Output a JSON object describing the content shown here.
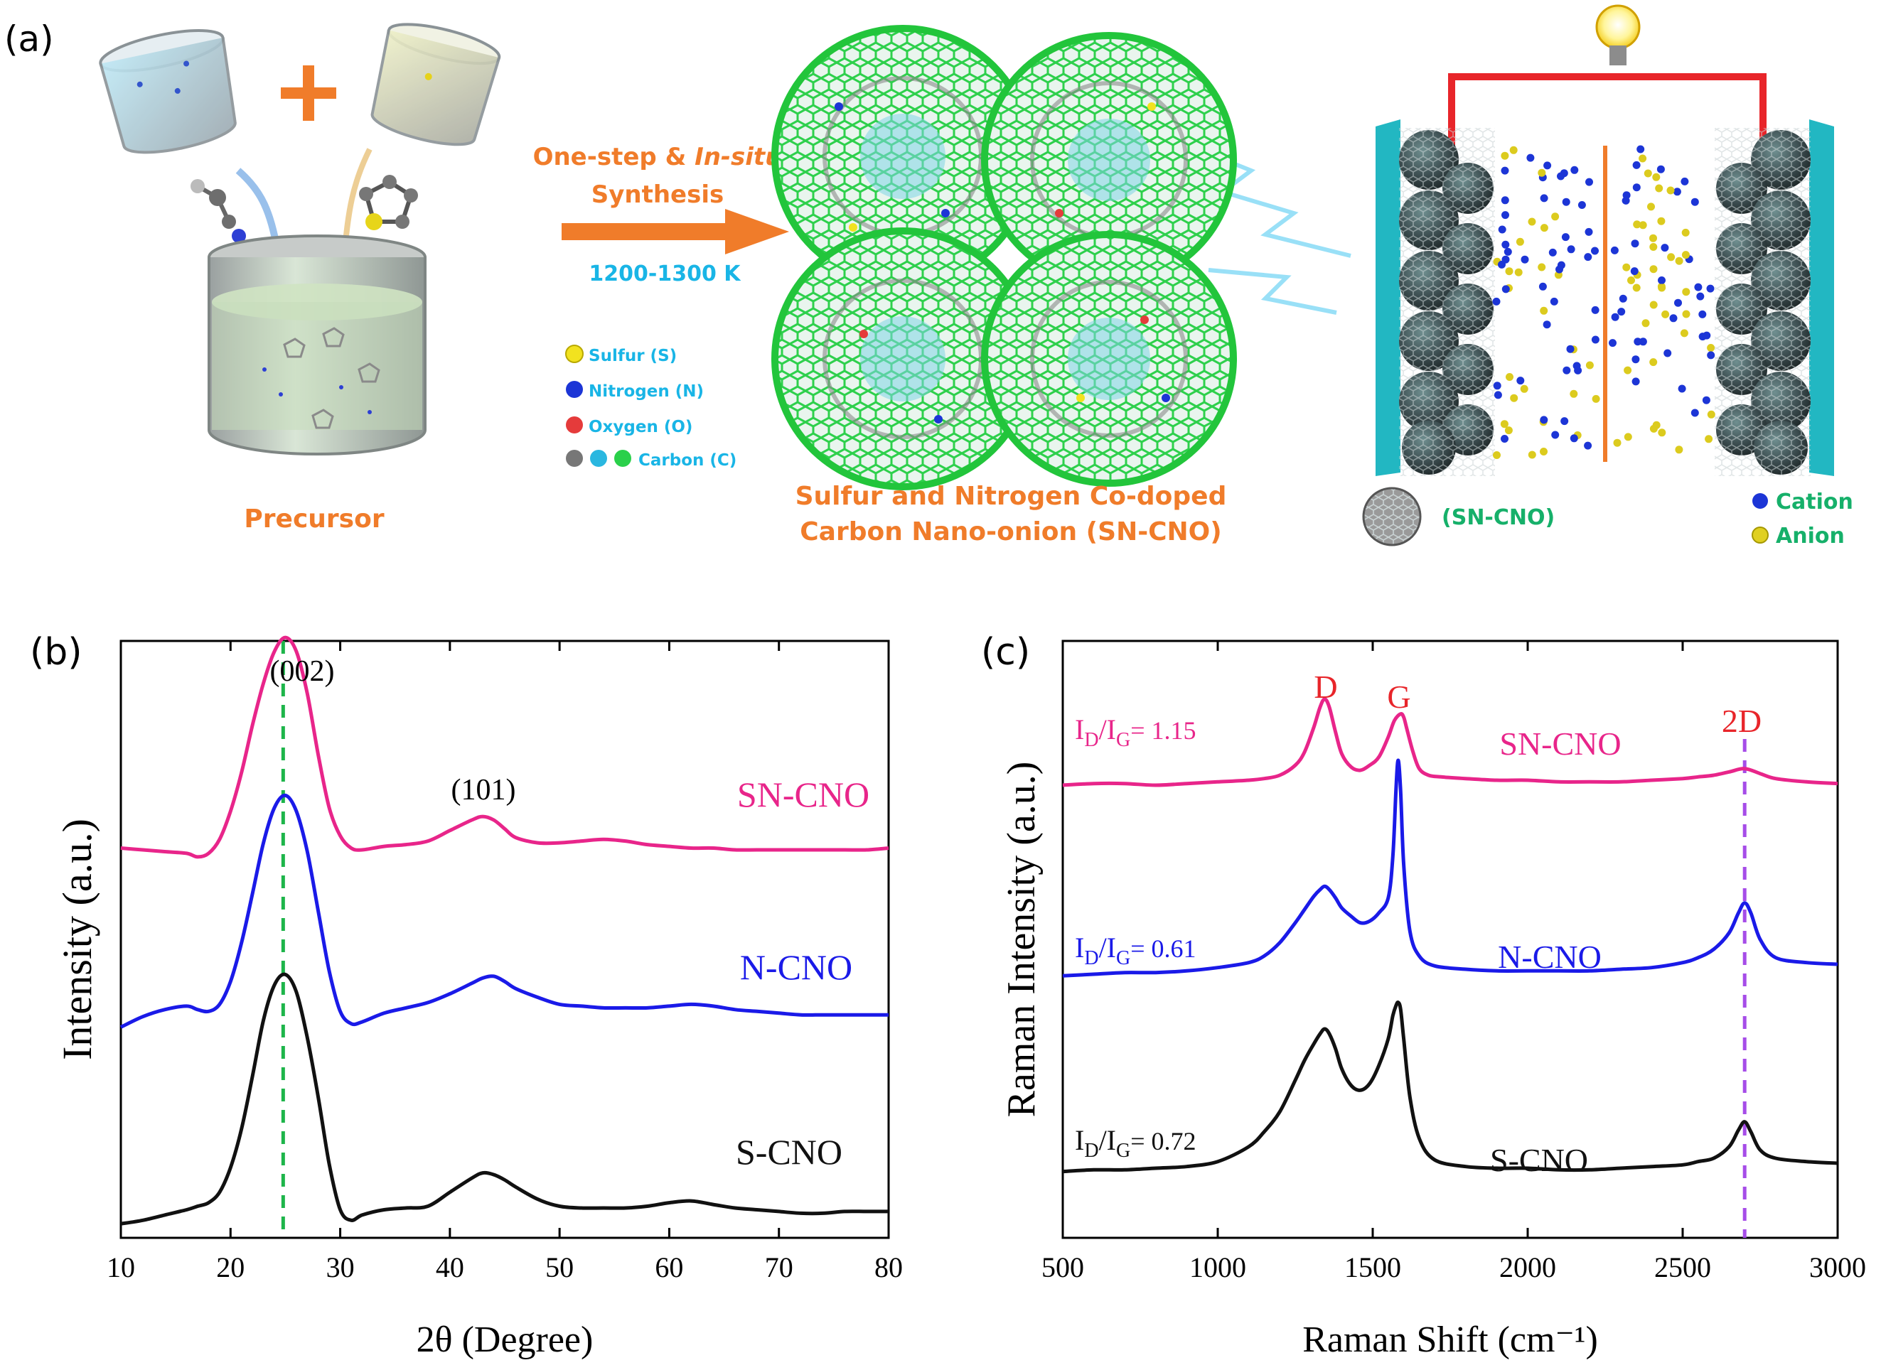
{
  "panel_a": {
    "label": "(a)",
    "precursor_label": "Precursor",
    "arrow_line1_plain": "One-step & ",
    "arrow_line1_italic": "In-situ",
    "arrow_line2": "Synthesis",
    "temperature": "1200-1300 K",
    "legend": {
      "sulfur": "Sulfur (S)",
      "nitrogen": "Nitrogen (N)",
      "oxygen": "Oxygen (O)",
      "carbon": "Carbon (C)"
    },
    "product_line1": "Sulfur and Nitrogen Co-doped",
    "product_line2": "Carbon Nano-onion (SN-CNO)",
    "device_legend": {
      "sncno": "(SN-CNO)",
      "cation": "Cation",
      "anion": "Anion"
    },
    "colors": {
      "orange": "#f07c2a",
      "cyan": "#19b5e6",
      "green": "#1dbf3a",
      "device_cyan": "#22b7c2",
      "wire_red": "#e8252a",
      "legend_green": "#16b06a"
    }
  },
  "panel_b": {
    "label": "(b)",
    "peak_labels": [
      "(002)",
      "(101)"
    ],
    "ref_line_color": "#1db54a"
  },
  "panel_c": {
    "label": "(c)",
    "peak_labels": [
      "D",
      "G",
      "2D"
    ],
    "ratios": [
      {
        "prefix": "I",
        "sub1": "D",
        "mid": "/I",
        "sub2": "G",
        "value": "= 1.15",
        "color": "#e8258a"
      },
      {
        "prefix": "I",
        "sub1": "D",
        "mid": "/I",
        "sub2": "G",
        "value": "= 0.61",
        "color": "#1a1ae8"
      },
      {
        "prefix": "I",
        "sub1": "D",
        "mid": "/I",
        "sub2": "G",
        "value": "= 0.72",
        "color": "#111111"
      }
    ],
    "ref_line_color": "#a64de8"
  },
  "chart_data": [
    {
      "type": "line",
      "title": "",
      "xlabel": "2θ (Degree)",
      "ylabel": "Intensity (a.u.)",
      "xlim": [
        10,
        80
      ],
      "ylim": [
        0,
        3.4
      ],
      "xticks": [
        10,
        20,
        30,
        40,
        50,
        60,
        70,
        80
      ],
      "ref_line_x": 24.8,
      "series": [
        {
          "name": "SN-CNO",
          "color": "#e8258a",
          "x": [
            10,
            12,
            14,
            16,
            17,
            18,
            19,
            20,
            21,
            22,
            23,
            24,
            25,
            26,
            27,
            28,
            29,
            30,
            31,
            32,
            34,
            36,
            38,
            40,
            42,
            43,
            44,
            45,
            46,
            48,
            50,
            52,
            54,
            56,
            58,
            60,
            62,
            64,
            66,
            68,
            70,
            72,
            74,
            76,
            78,
            80
          ],
          "y": [
            2.22,
            2.21,
            2.2,
            2.19,
            2.17,
            2.19,
            2.27,
            2.43,
            2.65,
            2.92,
            3.16,
            3.34,
            3.42,
            3.34,
            3.1,
            2.75,
            2.45,
            2.29,
            2.22,
            2.21,
            2.23,
            2.24,
            2.26,
            2.32,
            2.38,
            2.4,
            2.38,
            2.33,
            2.28,
            2.25,
            2.25,
            2.26,
            2.27,
            2.26,
            2.24,
            2.23,
            2.22,
            2.22,
            2.21,
            2.21,
            2.21,
            2.21,
            2.21,
            2.21,
            2.21,
            2.22
          ]
        },
        {
          "name": "N-CNO",
          "color": "#1a1ae8",
          "x": [
            10,
            12,
            14,
            16,
            17,
            18,
            19,
            20,
            21,
            22,
            23,
            24,
            25,
            26,
            27,
            28,
            29,
            30,
            31,
            32,
            34,
            36,
            38,
            40,
            42,
            43,
            44,
            45,
            46,
            48,
            50,
            52,
            54,
            56,
            58,
            60,
            62,
            64,
            66,
            68,
            70,
            72,
            74,
            76,
            78,
            80
          ],
          "y": [
            1.2,
            1.26,
            1.3,
            1.32,
            1.3,
            1.29,
            1.33,
            1.46,
            1.68,
            1.96,
            2.25,
            2.45,
            2.52,
            2.43,
            2.2,
            1.86,
            1.52,
            1.29,
            1.22,
            1.23,
            1.28,
            1.31,
            1.34,
            1.39,
            1.45,
            1.48,
            1.49,
            1.46,
            1.42,
            1.37,
            1.33,
            1.32,
            1.31,
            1.31,
            1.31,
            1.32,
            1.33,
            1.32,
            1.3,
            1.29,
            1.28,
            1.27,
            1.27,
            1.27,
            1.27,
            1.27
          ]
        },
        {
          "name": "S-CNO",
          "color": "#111111",
          "x": [
            10,
            12,
            14,
            16,
            17,
            18,
            19,
            20,
            21,
            22,
            23,
            24,
            25,
            26,
            27,
            28,
            29,
            30,
            31,
            32,
            34,
            36,
            38,
            40,
            42,
            43,
            44,
            45,
            46,
            48,
            50,
            52,
            54,
            56,
            58,
            60,
            62,
            64,
            66,
            68,
            70,
            72,
            74,
            76,
            78,
            80
          ],
          "y": [
            0.08,
            0.1,
            0.13,
            0.16,
            0.18,
            0.2,
            0.26,
            0.4,
            0.62,
            0.92,
            1.24,
            1.44,
            1.5,
            1.4,
            1.14,
            0.8,
            0.42,
            0.16,
            0.1,
            0.13,
            0.16,
            0.17,
            0.18,
            0.26,
            0.34,
            0.37,
            0.36,
            0.33,
            0.29,
            0.22,
            0.18,
            0.17,
            0.17,
            0.17,
            0.18,
            0.2,
            0.21,
            0.19,
            0.17,
            0.16,
            0.15,
            0.14,
            0.14,
            0.15,
            0.15,
            0.15
          ]
        }
      ],
      "series_labels": [
        "SN-CNO",
        "N-CNO",
        "S-CNO"
      ]
    },
    {
      "type": "line",
      "title": "",
      "xlabel": "Raman Shift (cm⁻¹)",
      "ylabel": "Raman Intensity (a.u.)",
      "xlim": [
        500,
        3000
      ],
      "ylim": [
        0,
        3.6
      ],
      "xticks": [
        500,
        1000,
        1500,
        2000,
        2500,
        3000
      ],
      "ref_line_x": 2700,
      "series": [
        {
          "name": "SN-CNO",
          "color": "#e8258a",
          "x": [
            500,
            600,
            700,
            800,
            900,
            1000,
            1100,
            1150,
            1200,
            1250,
            1280,
            1310,
            1330,
            1345,
            1360,
            1380,
            1400,
            1430,
            1460,
            1490,
            1520,
            1550,
            1570,
            1590,
            1600,
            1610,
            1630,
            1650,
            1680,
            1720,
            1800,
            1900,
            2000,
            2100,
            2200,
            2300,
            2400,
            2500,
            2550,
            2600,
            2650,
            2700,
            2750,
            2800,
            2900,
            3000
          ],
          "y": [
            2.73,
            2.74,
            2.74,
            2.73,
            2.74,
            2.75,
            2.76,
            2.77,
            2.79,
            2.85,
            2.93,
            3.08,
            3.2,
            3.25,
            3.2,
            3.05,
            2.92,
            2.84,
            2.82,
            2.85,
            2.9,
            3.02,
            3.12,
            3.16,
            3.14,
            3.07,
            2.93,
            2.83,
            2.79,
            2.78,
            2.77,
            2.76,
            2.76,
            2.75,
            2.75,
            2.75,
            2.76,
            2.77,
            2.78,
            2.79,
            2.81,
            2.83,
            2.8,
            2.77,
            2.75,
            2.74
          ]
        },
        {
          "name": "N-CNO",
          "color": "#1a1ae8",
          "x": [
            500,
            600,
            700,
            800,
            900,
            1000,
            1100,
            1150,
            1200,
            1250,
            1280,
            1310,
            1330,
            1345,
            1360,
            1380,
            1400,
            1430,
            1460,
            1490,
            1520,
            1550,
            1565,
            1575,
            1582,
            1590,
            1600,
            1620,
            1650,
            1700,
            1800,
            1900,
            2000,
            2100,
            2200,
            2300,
            2400,
            2500,
            2550,
            2600,
            2650,
            2680,
            2700,
            2720,
            2750,
            2800,
            2900,
            3000
          ],
          "y": [
            1.58,
            1.59,
            1.6,
            1.6,
            1.61,
            1.63,
            1.66,
            1.7,
            1.78,
            1.9,
            1.98,
            2.06,
            2.1,
            2.12,
            2.1,
            2.05,
            1.99,
            1.94,
            1.9,
            1.91,
            1.96,
            2.05,
            2.3,
            2.7,
            2.88,
            2.7,
            2.25,
            1.85,
            1.7,
            1.64,
            1.62,
            1.61,
            1.61,
            1.61,
            1.61,
            1.62,
            1.63,
            1.66,
            1.69,
            1.74,
            1.84,
            1.96,
            2.02,
            1.96,
            1.8,
            1.69,
            1.66,
            1.65
          ]
        },
        {
          "name": "S-CNO",
          "color": "#111111",
          "x": [
            500,
            600,
            700,
            800,
            900,
            1000,
            1100,
            1150,
            1200,
            1250,
            1280,
            1310,
            1330,
            1345,
            1360,
            1380,
            1400,
            1430,
            1460,
            1490,
            1520,
            1550,
            1565,
            1575,
            1582,
            1590,
            1600,
            1620,
            1650,
            1700,
            1800,
            1900,
            2000,
            2100,
            2200,
            2300,
            2400,
            2500,
            2550,
            2600,
            2650,
            2680,
            2700,
            2720,
            2750,
            2800,
            2900,
            3000
          ],
          "y": [
            0.4,
            0.41,
            0.41,
            0.42,
            0.43,
            0.46,
            0.55,
            0.64,
            0.76,
            0.95,
            1.07,
            1.17,
            1.23,
            1.26,
            1.23,
            1.14,
            1.02,
            0.92,
            0.89,
            0.93,
            1.04,
            1.2,
            1.34,
            1.4,
            1.42,
            1.38,
            1.2,
            0.85,
            0.6,
            0.47,
            0.43,
            0.42,
            0.42,
            0.41,
            0.41,
            0.42,
            0.43,
            0.44,
            0.46,
            0.48,
            0.55,
            0.65,
            0.7,
            0.64,
            0.53,
            0.48,
            0.46,
            0.45
          ]
        }
      ],
      "series_labels": [
        "SN-CNO",
        "N-CNO",
        "S-CNO"
      ]
    }
  ]
}
